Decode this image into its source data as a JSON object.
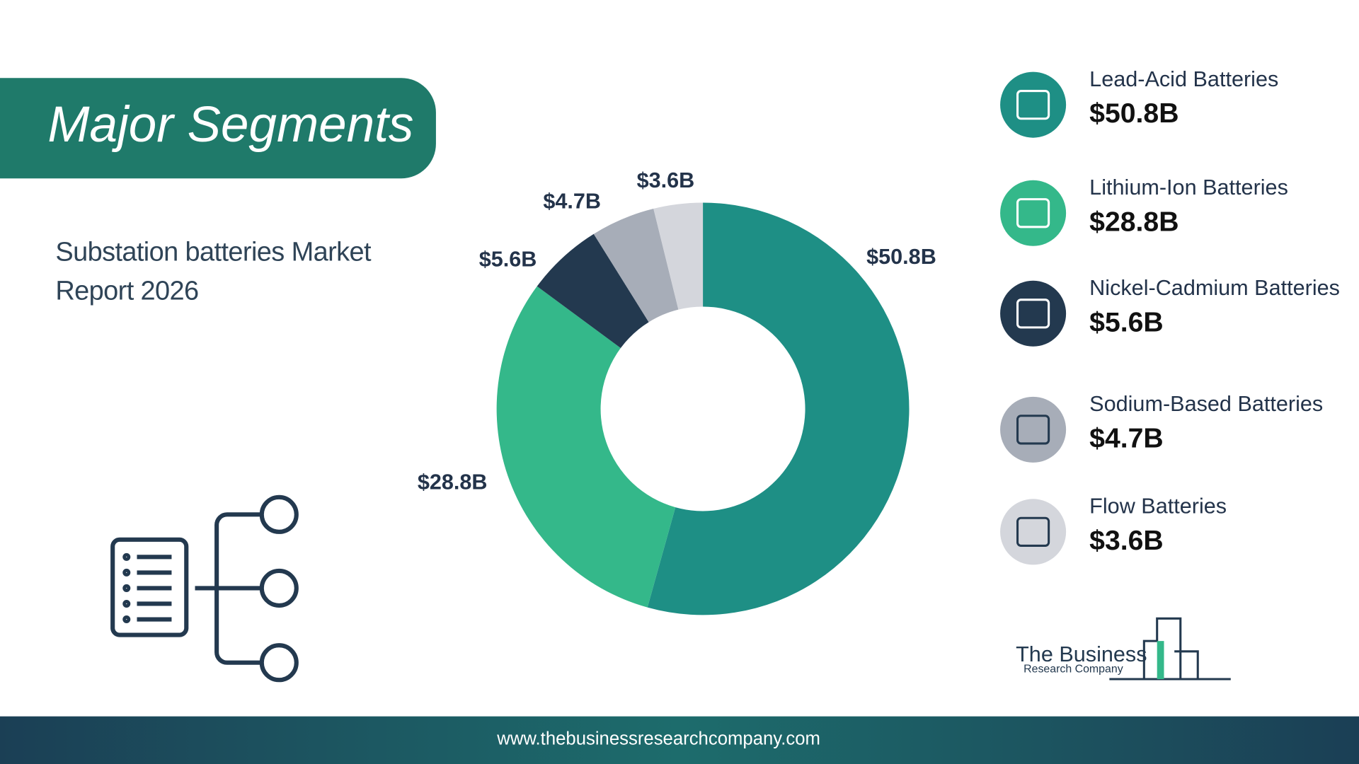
{
  "chart_data": {
    "type": "donut",
    "title": "Major Segments",
    "subtitle": "Substation batteries Market Report 2026",
    "categories": [
      "Lead-Acid Batteries",
      "Lithium-Ion Batteries",
      "Nickel-Cadmium Batteries",
      "Sodium-Based Batteries",
      "Flow Batteries"
    ],
    "values": [
      50.8,
      28.8,
      5.6,
      4.7,
      3.6
    ],
    "value_labels": [
      "$50.8B",
      "$28.8B",
      "$5.6B",
      "$4.7B",
      "$3.6B"
    ],
    "colors": [
      "#1e8f85",
      "#34b88a",
      "#23394f",
      "#a7adb8",
      "#d4d6dc"
    ]
  },
  "footer": {
    "url": "www.thebusinessresearchcompany.com"
  },
  "logo": {
    "line1": "The Business",
    "line2": "Research Company"
  }
}
